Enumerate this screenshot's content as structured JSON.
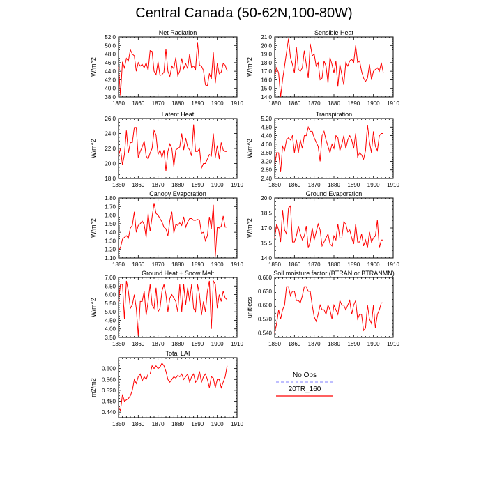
{
  "title": "Central Canada (50-62N,100-80W)",
  "colors": {
    "model": "#ff0000",
    "obs": "#9999ff",
    "axis": "#000000"
  },
  "legend": {
    "obs_label": "No Obs",
    "model_label": "20TR_160"
  },
  "chart_data": [
    {
      "type": "line",
      "title": "Net Radiation",
      "ylabel": "W/m^2",
      "xlim": [
        1850,
        1910
      ],
      "ylim": [
        38.0,
        52.0
      ],
      "xticks": [
        1850,
        1860,
        1870,
        1880,
        1890,
        1900,
        1910
      ],
      "yticks": [
        38.0,
        40.0,
        42.0,
        44.0,
        46.0,
        48.0,
        50.0,
        52.0
      ],
      "ydec": 1,
      "series": [
        {
          "x0": 1850,
          "values": [
            45.0,
            38.4,
            46.2,
            44.8,
            47.0,
            46.4,
            49.0,
            48.0,
            47.6,
            44.0,
            46.0,
            45.2,
            45.6,
            44.8,
            46.0,
            44.2,
            48.8,
            48.6,
            44.0,
            43.2,
            46.2,
            43.0,
            43.2,
            43.8,
            49.2,
            44.0,
            42.8,
            45.2,
            44.6,
            47.2,
            43.0,
            44.0,
            47.0,
            44.6,
            45.8,
            44.6,
            48.0,
            44.8,
            45.2,
            44.4,
            50.8,
            45.4,
            45.2,
            44.2,
            40.8,
            40.6,
            43.4,
            42.2,
            48.4,
            41.2,
            45.8,
            43.4,
            43.8,
            45.8,
            45.4,
            44.0
          ]
        }
      ]
    },
    {
      "type": "line",
      "title": "Sensible Heat",
      "ylabel": "W/m^2",
      "xlim": [
        1850,
        1910
      ],
      "ylim": [
        14.0,
        21.0
      ],
      "xticks": [
        1850,
        1860,
        1870,
        1880,
        1890,
        1900,
        1910
      ],
      "yticks": [
        14.0,
        15.0,
        16.0,
        17.0,
        18.0,
        19.0,
        20.0,
        21.0
      ],
      "ydec": 1,
      "series": [
        {
          "x0": 1850,
          "values": [
            16.6,
            17.4,
            16.8,
            14.0,
            16.0,
            17.6,
            19.2,
            20.8,
            18.6,
            17.8,
            16.8,
            19.8,
            17.2,
            17.0,
            17.4,
            19.4,
            17.8,
            16.2,
            20.2,
            18.8,
            19.0,
            17.6,
            18.0,
            16.0,
            16.2,
            18.2,
            17.6,
            15.6,
            18.6,
            17.8,
            16.8,
            18.2,
            15.2,
            17.8,
            16.6,
            15.4,
            18.0,
            17.6,
            18.2,
            18.4,
            18.0,
            20.0,
            18.0,
            18.2,
            17.0,
            16.2,
            15.8,
            16.2,
            17.8,
            16.0,
            17.0,
            17.2,
            17.4,
            17.0,
            18.0,
            16.8
          ]
        }
      ]
    },
    {
      "type": "line",
      "title": "Latent Heat",
      "ylabel": "W/m^2",
      "xlim": [
        1850,
        1910
      ],
      "ylim": [
        18.0,
        26.0
      ],
      "xticks": [
        1850,
        1860,
        1870,
        1880,
        1890,
        1900,
        1910
      ],
      "yticks": [
        18.0,
        20.0,
        22.0,
        24.0,
        26.0
      ],
      "ydec": 1,
      "series": [
        {
          "x0": 1850,
          "values": [
            21.0,
            22.0,
            19.8,
            21.2,
            24.4,
            21.4,
            22.8,
            22.8,
            24.8,
            24.8,
            20.8,
            21.6,
            22.2,
            23.0,
            21.0,
            20.6,
            21.4,
            22.0,
            24.4,
            23.8,
            21.2,
            21.8,
            20.8,
            21.8,
            19.0,
            21.6,
            22.6,
            22.0,
            19.6,
            21.8,
            22.0,
            22.2,
            24.0,
            21.8,
            23.4,
            22.2,
            21.8,
            21.0,
            25.2,
            21.6,
            21.6,
            22.0,
            19.4,
            20.0,
            20.0,
            20.6,
            21.2,
            21.0,
            24.0,
            20.8,
            22.4,
            20.6,
            22.8,
            21.8,
            21.6,
            21.6
          ]
        }
      ]
    },
    {
      "type": "line",
      "title": "Transpiration",
      "ylabel": "W/m^2",
      "xlim": [
        1850,
        1910
      ],
      "ylim": [
        2.4,
        5.2
      ],
      "xticks": [
        1850,
        1860,
        1870,
        1880,
        1890,
        1900,
        1910
      ],
      "yticks": [
        2.4,
        2.8,
        3.2,
        3.6,
        4.0,
        4.4,
        4.8,
        5.2
      ],
      "ydec": 2,
      "series": [
        {
          "x0": 1850,
          "values": [
            3.0,
            3.6,
            3.6,
            2.7,
            3.9,
            3.7,
            4.2,
            4.3,
            4.2,
            4.4,
            3.6,
            4.2,
            3.6,
            4.2,
            3.8,
            4.4,
            4.4,
            4.8,
            4.6,
            4.6,
            4.3,
            4.1,
            3.9,
            3.2,
            4.4,
            4.6,
            4.2,
            3.9,
            3.6,
            4.0,
            3.8,
            4.4,
            4.3,
            3.7,
            4.0,
            4.4,
            3.8,
            4.2,
            4.4,
            4.2,
            3.8,
            4.5,
            3.4,
            3.6,
            3.5,
            3.3,
            3.7,
            4.9,
            4.1,
            3.6,
            4.6,
            3.9,
            3.7,
            4.4,
            4.5,
            4.5
          ]
        }
      ]
    },
    {
      "type": "line",
      "title": "Canopy Evaporation",
      "ylabel": "W/m^2",
      "xlim": [
        1850,
        1910
      ],
      "ylim": [
        1.1,
        1.8
      ],
      "xticks": [
        1850,
        1860,
        1870,
        1880,
        1890,
        1900,
        1910
      ],
      "yticks": [
        1.1,
        1.2,
        1.3,
        1.4,
        1.5,
        1.6,
        1.7,
        1.8
      ],
      "ydec": 2,
      "series": [
        {
          "x0": 1850,
          "values": [
            1.19,
            1.22,
            1.32,
            1.34,
            1.36,
            1.33,
            1.45,
            1.48,
            1.64,
            1.4,
            1.48,
            1.5,
            1.53,
            1.49,
            1.34,
            1.62,
            1.41,
            1.58,
            1.74,
            1.62,
            1.6,
            1.56,
            1.52,
            1.46,
            1.44,
            1.36,
            1.54,
            1.64,
            1.39,
            1.49,
            1.48,
            1.51,
            1.48,
            1.58,
            1.46,
            1.52,
            1.56,
            1.56,
            1.54,
            1.54,
            1.55,
            1.54,
            1.39,
            1.4,
            1.3,
            1.36,
            1.58,
            1.44,
            1.72,
            1.12,
            1.46,
            1.45,
            1.47,
            1.59,
            1.46,
            1.46
          ]
        }
      ]
    },
    {
      "type": "line",
      "title": "Ground Evaporation",
      "ylabel": "W/m^2",
      "xlim": [
        1850,
        1910
      ],
      "ylim": [
        14.0,
        20.0
      ],
      "xticks": [
        1850,
        1860,
        1870,
        1880,
        1890,
        1900,
        1910
      ],
      "yticks": [
        14.0,
        15.5,
        17.0,
        18.5,
        20.0
      ],
      "ydec": 1,
      "series": [
        {
          "x0": 1850,
          "values": [
            16.0,
            17.4,
            16.8,
            15.6,
            18.8,
            16.8,
            16.4,
            19.0,
            19.2,
            15.6,
            15.6,
            16.2,
            17.2,
            16.4,
            15.8,
            16.2,
            17.2,
            15.0,
            15.6,
            17.0,
            15.8,
            16.6,
            17.4,
            16.8,
            15.2,
            15.6,
            16.0,
            16.4,
            15.4,
            15.2,
            16.2,
            15.8,
            17.4,
            16.0,
            16.0,
            17.6,
            17.4,
            16.6,
            16.8,
            16.0,
            15.4,
            17.4,
            15.6,
            15.6,
            16.4,
            15.2,
            15.8,
            15.0,
            16.6,
            15.6,
            16.0,
            16.2,
            17.8,
            15.0,
            15.8,
            15.8
          ]
        }
      ]
    },
    {
      "type": "line",
      "title": "Ground Heat + Snow Melt",
      "ylabel": "W/m^2",
      "xlim": [
        1850,
        1910
      ],
      "ylim": [
        3.5,
        7.0
      ],
      "xticks": [
        1850,
        1860,
        1870,
        1880,
        1890,
        1900,
        1910
      ],
      "yticks": [
        3.5,
        4.0,
        4.5,
        5.0,
        5.5,
        6.0,
        6.5,
        7.0
      ],
      "ydec": 2,
      "series": [
        {
          "x0": 1850,
          "values": [
            5.6,
            6.6,
            6.6,
            4.6,
            6.8,
            6.2,
            5.2,
            5.4,
            6.0,
            5.2,
            3.6,
            5.6,
            5.6,
            6.2,
            4.8,
            5.6,
            6.6,
            5.4,
            5.2,
            6.4,
            5.0,
            5.2,
            6.2,
            6.6,
            6.0,
            5.0,
            5.8,
            6.0,
            5.8,
            5.6,
            5.0,
            6.6,
            5.0,
            6.6,
            5.4,
            6.4,
            5.6,
            6.6,
            5.2,
            5.0,
            6.6,
            6.0,
            4.8,
            5.6,
            5.0,
            6.2,
            6.8,
            4.0,
            6.8,
            6.6,
            5.2,
            6.0,
            5.6,
            6.2,
            5.8,
            5.7
          ]
        }
      ]
    },
    {
      "type": "line",
      "title": "Soil moisture factor (BTRAN or BTRANMN)",
      "ylabel": "unitless",
      "xlim": [
        1850,
        1910
      ],
      "ylim": [
        0.53,
        0.66
      ],
      "xticks": [
        1850,
        1860,
        1870,
        1880,
        1890,
        1900,
        1910
      ],
      "yticks": [
        0.54,
        0.57,
        0.6,
        0.63,
        0.66
      ],
      "ydec": 3,
      "series": [
        {
          "x0": 1850,
          "values": [
            0.54,
            0.56,
            0.59,
            0.57,
            0.59,
            0.6,
            0.64,
            0.64,
            0.62,
            0.63,
            0.63,
            0.61,
            0.61,
            0.605,
            0.62,
            0.64,
            0.64,
            0.63,
            0.63,
            0.6,
            0.575,
            0.565,
            0.58,
            0.6,
            0.59,
            0.59,
            0.58,
            0.6,
            0.59,
            0.57,
            0.6,
            0.59,
            0.58,
            0.61,
            0.6,
            0.6,
            0.59,
            0.6,
            0.61,
            0.58,
            0.6,
            0.61,
            0.57,
            0.58,
            0.58,
            0.545,
            0.55,
            0.6,
            0.57,
            0.56,
            0.6,
            0.55,
            0.58,
            0.59,
            0.605,
            0.605
          ]
        }
      ]
    },
    {
      "type": "line",
      "title": "Total LAI",
      "ylabel": "m2/m2",
      "xlim": [
        1850,
        1910
      ],
      "ylim": [
        0.42,
        0.64
      ],
      "xticks": [
        1850,
        1860,
        1870,
        1880,
        1890,
        1900,
        1910
      ],
      "yticks": [
        0.44,
        0.48,
        0.52,
        0.56,
        0.6
      ],
      "ydec": 3,
      "series": [
        {
          "x0": 1850,
          "values": [
            0.46,
            0.445,
            0.505,
            0.48,
            0.485,
            0.49,
            0.5,
            0.52,
            0.56,
            0.545,
            0.57,
            0.58,
            0.555,
            0.57,
            0.56,
            0.58,
            0.58,
            0.61,
            0.6,
            0.61,
            0.6,
            0.605,
            0.62,
            0.61,
            0.59,
            0.56,
            0.55,
            0.56,
            0.57,
            0.565,
            0.575,
            0.57,
            0.58,
            0.56,
            0.57,
            0.58,
            0.55,
            0.57,
            0.58,
            0.55,
            0.56,
            0.59,
            0.55,
            0.57,
            0.58,
            0.56,
            0.53,
            0.57,
            0.565,
            0.53,
            0.56,
            0.56,
            0.53,
            0.55,
            0.57,
            0.61
          ]
        }
      ]
    }
  ]
}
